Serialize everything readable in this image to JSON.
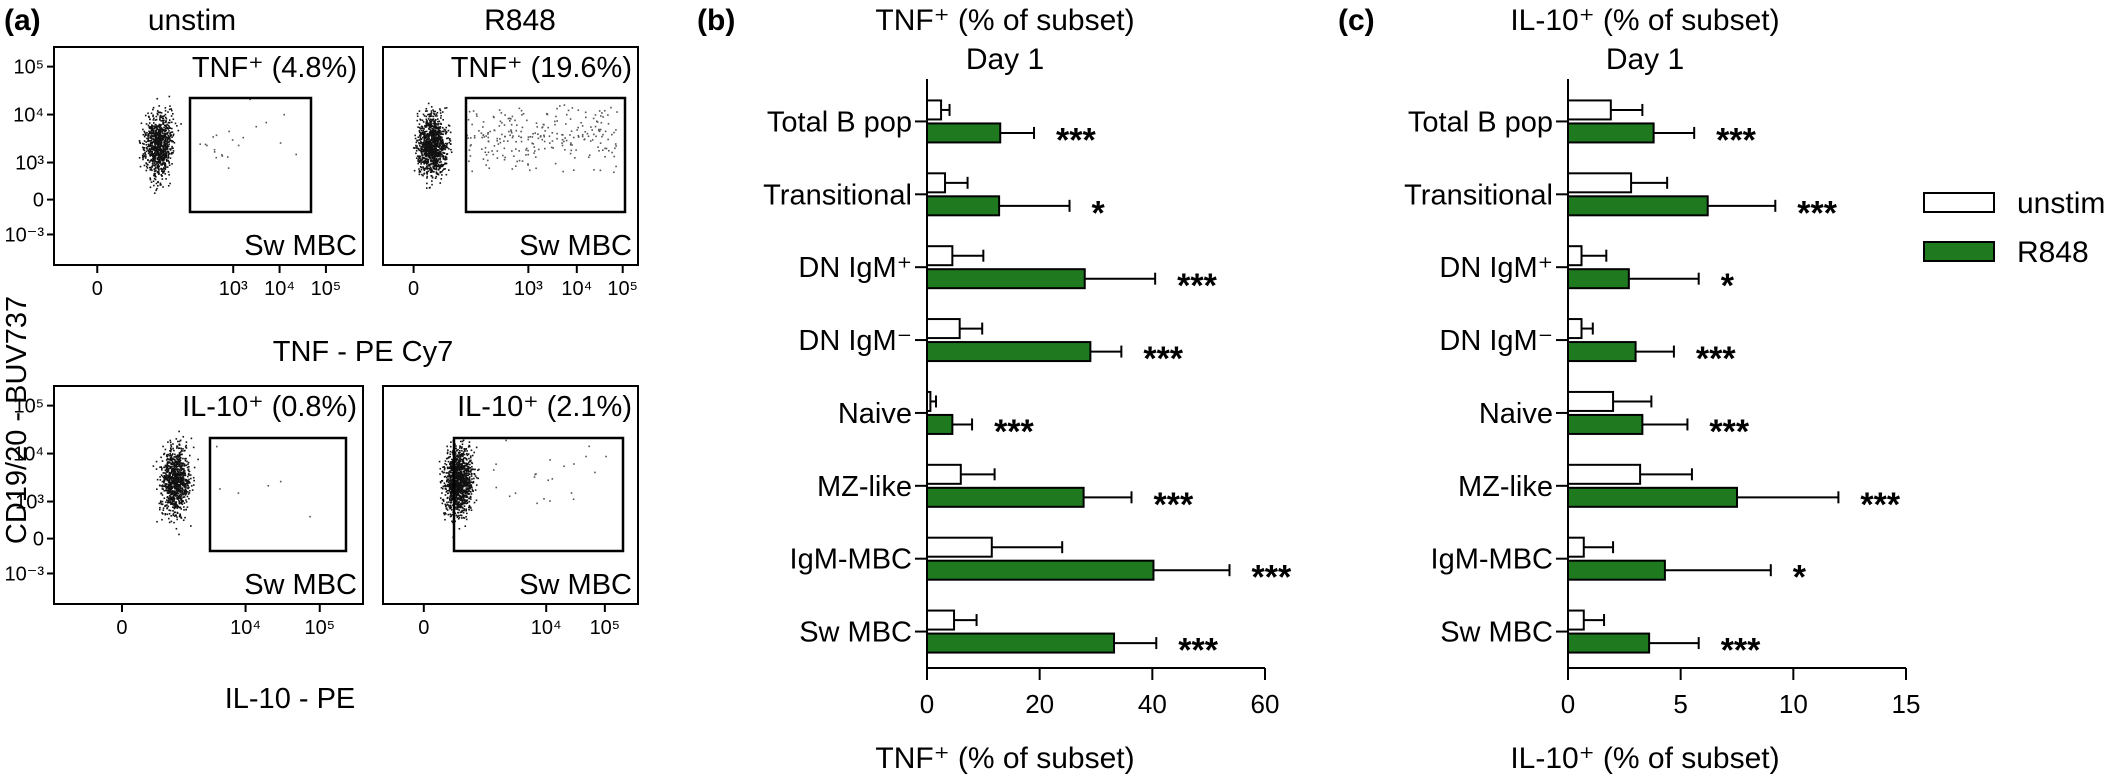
{
  "colors": {
    "stim": "#1f7a1f",
    "unstim": "#ffffff",
    "outline": "#000000",
    "dots": "#111111"
  },
  "panel_a": {
    "label": "(a)",
    "col_titles": [
      "unstim",
      "R848"
    ],
    "y_axis_label": "CD19/20 - BUV737",
    "top_x_label": "TNF - PE Cy7",
    "bottom_x_label": "IL-10 - PE",
    "y_ticks": [
      "10⁵",
      "10⁴",
      "10³",
      "0",
      "10⁻³"
    ],
    "top_x_ticks": [
      "0",
      "10³",
      "10⁴",
      "10⁵"
    ],
    "bottom_x_ticks": [
      "0",
      "10⁴",
      "10⁵"
    ],
    "plots": [
      {
        "gate_label": "TNF⁺ (4.8%)",
        "population": "Sw MBC"
      },
      {
        "gate_label": "TNF⁺ (19.6%)",
        "population": "Sw MBC"
      },
      {
        "gate_label": "IL-10⁺ (0.8%)",
        "population": "Sw MBC"
      },
      {
        "gate_label": "IL-10⁺ (2.1%)",
        "population": "Sw MBC"
      }
    ]
  },
  "legend": {
    "items": [
      {
        "name": "unstim",
        "color": "#ffffff"
      },
      {
        "name": "R848",
        "color": "#1f7a1f"
      }
    ]
  },
  "chart_data": [
    {
      "type": "bar",
      "orientation": "horizontal",
      "panel_label": "(b)",
      "title": "TNF⁺ (% of subset)",
      "subtitle": "Day 1",
      "xlabel": "TNF⁺ (% of subset)",
      "xlim": [
        0,
        60
      ],
      "xticks": [
        0,
        20,
        40,
        60
      ],
      "categories": [
        "Total B pop",
        "Transitional",
        "DN IgM⁺",
        "DN IgM⁻",
        "Naive",
        "MZ-like",
        "IgM-MBC",
        "Sw MBC"
      ],
      "series": [
        {
          "name": "unstim",
          "values": [
            2.5,
            3.2,
            4.5,
            5.8,
            0.6,
            6.0,
            11.5,
            4.8
          ],
          "errors": [
            1.5,
            4.0,
            5.5,
            4.0,
            1.0,
            6.0,
            12.5,
            4.0
          ]
        },
        {
          "name": "R848",
          "values": [
            13.0,
            12.8,
            28.0,
            29.0,
            4.5,
            27.8,
            40.2,
            33.2
          ],
          "errors": [
            6.0,
            12.5,
            12.5,
            5.5,
            3.5,
            8.5,
            13.5,
            7.5
          ]
        }
      ],
      "significance": [
        "***",
        "*",
        "***",
        "***",
        "***",
        "***",
        "***",
        "***"
      ]
    },
    {
      "type": "bar",
      "orientation": "horizontal",
      "panel_label": "(c)",
      "title": "IL-10⁺ (% of subset)",
      "subtitle": "Day 1",
      "xlabel": "IL-10⁺ (% of subset)",
      "xlim": [
        0,
        15
      ],
      "xticks": [
        0,
        5,
        10,
        15
      ],
      "categories": [
        "Total B pop",
        "Transitional",
        "DN IgM⁺",
        "DN IgM⁻",
        "Naive",
        "MZ-like",
        "IgM-MBC",
        "Sw MBC"
      ],
      "series": [
        {
          "name": "unstim",
          "values": [
            1.9,
            2.8,
            0.6,
            0.6,
            2.0,
            3.2,
            0.7,
            0.7
          ],
          "errors": [
            1.4,
            1.6,
            1.1,
            0.5,
            1.7,
            2.3,
            1.3,
            0.9
          ]
        },
        {
          "name": "R848",
          "values": [
            3.8,
            6.2,
            2.7,
            3.0,
            3.3,
            7.5,
            4.3,
            3.6
          ],
          "errors": [
            1.8,
            3.0,
            3.1,
            1.7,
            2.0,
            4.5,
            4.7,
            2.2
          ]
        }
      ],
      "significance": [
        "***",
        "***",
        "*",
        "***",
        "***",
        "***",
        "*",
        "***"
      ]
    }
  ]
}
